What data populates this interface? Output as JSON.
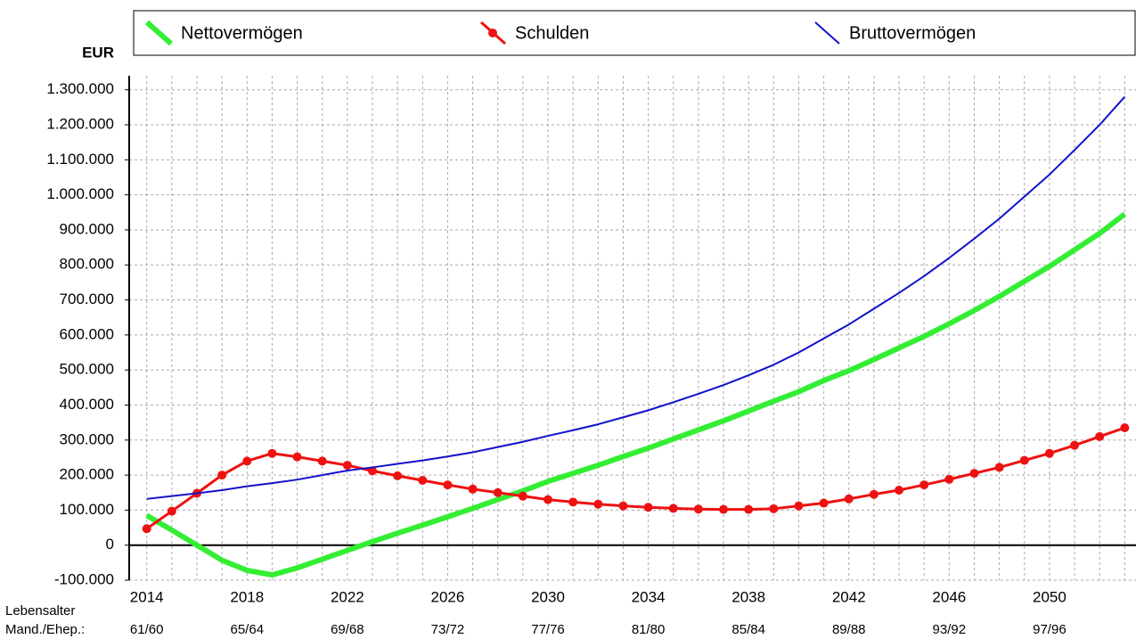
{
  "chart_data": {
    "type": "line",
    "y_label": "EUR",
    "x_label_lines": [
      "Lebensalter",
      "Mand./Ehep.:"
    ],
    "x": [
      2014,
      2015,
      2016,
      2017,
      2018,
      2019,
      2020,
      2021,
      2022,
      2023,
      2024,
      2025,
      2026,
      2027,
      2028,
      2029,
      2030,
      2031,
      2032,
      2033,
      2034,
      2035,
      2036,
      2037,
      2038,
      2039,
      2040,
      2041,
      2042,
      2043,
      2044,
      2045,
      2046,
      2047,
      2048,
      2049,
      2050,
      2051,
      2052,
      2053
    ],
    "series": [
      {
        "name": "Nettovermögen",
        "color": "#33ee33",
        "width": 6,
        "markers": false,
        "values": [
          85000,
          43000,
          0,
          -43000,
          -72000,
          -85000,
          -65000,
          -40000,
          -15000,
          10000,
          34000,
          57000,
          81000,
          105000,
          130000,
          155000,
          182000,
          205000,
          228000,
          253000,
          277000,
          303000,
          329000,
          355000,
          383000,
          411000,
          438000,
          470000,
          498000,
          530000,
          563000,
          596000,
          632000,
          670000,
          710000,
          753000,
          796000,
          843000,
          890000,
          945000
        ]
      },
      {
        "name": "Schulden",
        "color": "#ee1111",
        "width": 3,
        "markers": true,
        "values": [
          47000,
          97000,
          148000,
          200000,
          240000,
          262000,
          252000,
          240000,
          228000,
          212000,
          198000,
          185000,
          172000,
          160000,
          150000,
          140000,
          130000,
          123000,
          117000,
          112000,
          108000,
          105000,
          103000,
          102000,
          102000,
          104000,
          112000,
          120000,
          132000,
          145000,
          157000,
          172000,
          188000,
          205000,
          222000,
          242000,
          262000,
          285000,
          310000,
          335000
        ]
      },
      {
        "name": "Bruttovermögen",
        "color": "#1111cc",
        "width": 2,
        "markers": false,
        "values": [
          132000,
          140000,
          148000,
          157000,
          168000,
          177000,
          187000,
          200000,
          213000,
          222000,
          232000,
          242000,
          253000,
          265000,
          280000,
          295000,
          312000,
          328000,
          345000,
          365000,
          385000,
          408000,
          432000,
          457000,
          485000,
          515000,
          550000,
          590000,
          630000,
          675000,
          720000,
          768000,
          820000,
          875000,
          932000,
          995000,
          1058000,
          1128000,
          1200000,
          1280000
        ]
      }
    ],
    "xlim": [
      2013.3,
      2053.45
    ],
    "xticks": [
      2014,
      2018,
      2022,
      2026,
      2030,
      2034,
      2038,
      2042,
      2046,
      2050
    ],
    "age_labels": [
      "61/60",
      "65/64",
      "69/68",
      "73/72",
      "77/76",
      "81/80",
      "85/84",
      "89/88",
      "93/92",
      "97/96"
    ],
    "ylim": [
      -100000,
      1340000
    ],
    "yticks": [
      {
        "value": -100000,
        "label": "-100.000"
      },
      0,
      {
        "value": 100000,
        "label": "100.000"
      },
      {
        "value": 200000,
        "label": "200.000"
      },
      {
        "value": 300000,
        "label": "300.000"
      },
      {
        "value": 400000,
        "label": "400.000"
      },
      {
        "value": 500000,
        "label": "500.000"
      },
      {
        "value": 600000,
        "label": "600.000"
      },
      {
        "value": 700000,
        "label": "700.000"
      },
      {
        "value": 800000,
        "label": "800.000"
      },
      {
        "value": 900000,
        "label": "900.000"
      },
      {
        "value": 1000000,
        "label": "1.000.000"
      },
      {
        "value": 1100000,
        "label": "1.100.000"
      },
      {
        "value": 1200000,
        "label": "1.200.000"
      },
      {
        "value": 1300000,
        "label": "1.300.000"
      }
    ],
    "grid": true
  }
}
